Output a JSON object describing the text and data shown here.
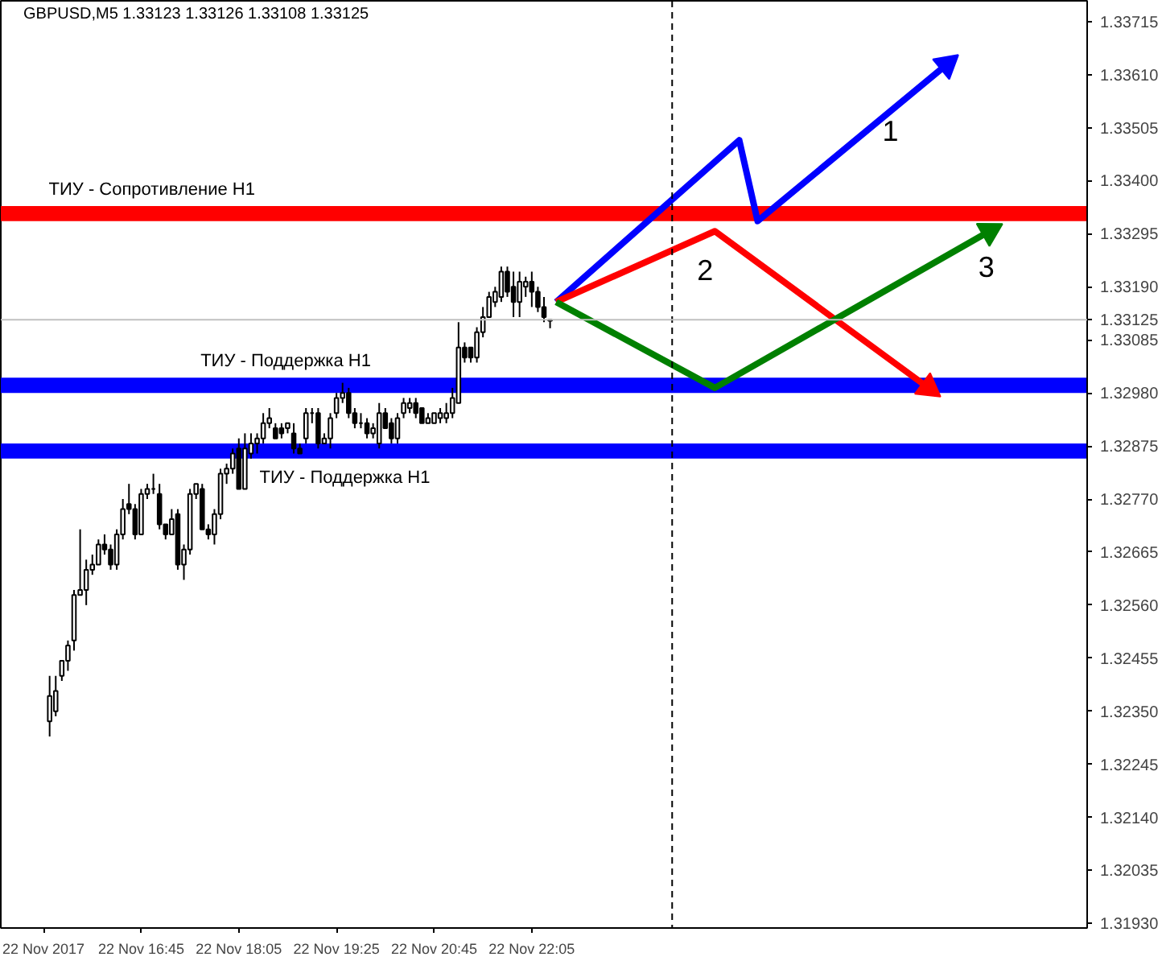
{
  "chart_data": {
    "type": "candlestick",
    "title": "GBPUSD,M5  1.33123 1.33126 1.33108 1.33125",
    "x": [
      "2017-11-22T15:30",
      "2017-11-22T15:35",
      "2017-11-22T15:40",
      "2017-11-22T15:45",
      "2017-11-22T15:50",
      "2017-11-22T15:55",
      "2017-11-22T16:00",
      "2017-11-22T16:05",
      "2017-11-22T16:10",
      "2017-11-22T16:15",
      "2017-11-22T16:20",
      "2017-11-22T16:25",
      "2017-11-22T16:30",
      "2017-11-22T16:35",
      "2017-11-22T16:40",
      "2017-11-22T16:45",
      "2017-11-22T16:50",
      "2017-11-22T16:55",
      "2017-11-22T17:00",
      "2017-11-22T17:05",
      "2017-11-22T17:10",
      "2017-11-22T17:15",
      "2017-11-22T17:20",
      "2017-11-22T17:25",
      "2017-11-22T17:30",
      "2017-11-22T17:35",
      "2017-11-22T17:40",
      "2017-11-22T17:45",
      "2017-11-22T17:50",
      "2017-11-22T17:55",
      "2017-11-22T18:00",
      "2017-11-22T18:05",
      "2017-11-22T18:10",
      "2017-11-22T18:15",
      "2017-11-22T18:20",
      "2017-11-22T18:25",
      "2017-11-22T18:30",
      "2017-11-22T18:35",
      "2017-11-22T18:40",
      "2017-11-22T18:45",
      "2017-11-22T18:50",
      "2017-11-22T18:55",
      "2017-11-22T19:00",
      "2017-11-22T19:05",
      "2017-11-22T19:10",
      "2017-11-22T19:15",
      "2017-11-22T19:20",
      "2017-11-22T19:25",
      "2017-11-22T19:30",
      "2017-11-22T19:35",
      "2017-11-22T19:40",
      "2017-11-22T19:45",
      "2017-11-22T19:50",
      "2017-11-22T19:55",
      "2017-11-22T20:00",
      "2017-11-22T20:05",
      "2017-11-22T20:10",
      "2017-11-22T20:15",
      "2017-11-22T20:20",
      "2017-11-22T20:25",
      "2017-11-22T20:30",
      "2017-11-22T20:35",
      "2017-11-22T20:40",
      "2017-11-22T20:45",
      "2017-11-22T20:50",
      "2017-11-22T20:55",
      "2017-11-22T21:00",
      "2017-11-22T21:05",
      "2017-11-22T21:10",
      "2017-11-22T21:15",
      "2017-11-22T21:20",
      "2017-11-22T21:25",
      "2017-11-22T21:30",
      "2017-11-22T21:35",
      "2017-11-22T21:40",
      "2017-11-22T21:45",
      "2017-11-22T21:50",
      "2017-11-22T21:55",
      "2017-11-22T22:00",
      "2017-11-22T22:05",
      "2017-11-22T22:10",
      "2017-11-22T22:15",
      "2017-11-22T22:20"
    ],
    "ohlc": [
      [
        1.3233,
        1.3242,
        1.323,
        1.3238
      ],
      [
        1.3235,
        1.3242,
        1.3234,
        1.3239
      ],
      [
        1.3242,
        1.3245,
        1.3241,
        1.3245
      ],
      [
        1.3245,
        1.3249,
        1.3243,
        1.3248
      ],
      [
        1.3249,
        1.3259,
        1.3247,
        1.3258
      ],
      [
        1.3258,
        1.3271,
        1.3258,
        1.3259
      ],
      [
        1.3259,
        1.3265,
        1.3256,
        1.3263
      ],
      [
        1.3263,
        1.3266,
        1.3262,
        1.3264
      ],
      [
        1.3264,
        1.3269,
        1.3264,
        1.3268
      ],
      [
        1.3268,
        1.327,
        1.3266,
        1.3267
      ],
      [
        1.3267,
        1.3268,
        1.3263,
        1.3264
      ],
      [
        1.3264,
        1.3271,
        1.3263,
        1.327
      ],
      [
        1.327,
        1.3277,
        1.3269,
        1.3275
      ],
      [
        1.3276,
        1.328,
        1.3274,
        1.3275
      ],
      [
        1.3275,
        1.3276,
        1.3269,
        1.327
      ],
      [
        1.327,
        1.3279,
        1.327,
        1.3278
      ],
      [
        1.3278,
        1.328,
        1.3277,
        1.3279
      ],
      [
        1.3279,
        1.3282,
        1.3278,
        1.3279
      ],
      [
        1.3278,
        1.328,
        1.3271,
        1.3272
      ],
      [
        1.3272,
        1.3272,
        1.3269,
        1.327
      ],
      [
        1.327,
        1.3275,
        1.327,
        1.3273
      ],
      [
        1.3274,
        1.3275,
        1.3263,
        1.3264
      ],
      [
        1.3264,
        1.3268,
        1.3261,
        1.3267
      ],
      [
        1.3267,
        1.3279,
        1.3266,
        1.3278
      ],
      [
        1.3278,
        1.328,
        1.3277,
        1.328
      ],
      [
        1.3279,
        1.328,
        1.3271,
        1.3271
      ],
      [
        1.3271,
        1.3272,
        1.3269,
        1.327
      ],
      [
        1.327,
        1.3275,
        1.3268,
        1.3274
      ],
      [
        1.3274,
        1.3283,
        1.3273,
        1.3282
      ],
      [
        1.3282,
        1.3284,
        1.328,
        1.3283
      ],
      [
        1.3283,
        1.3287,
        1.3282,
        1.3286
      ],
      [
        1.3287,
        1.3289,
        1.3279,
        1.3279
      ],
      [
        1.3279,
        1.329,
        1.3279,
        1.3287
      ],
      [
        1.3286,
        1.329,
        1.3285,
        1.3288
      ],
      [
        1.3288,
        1.329,
        1.3286,
        1.3289
      ],
      [
        1.3289,
        1.3294,
        1.3288,
        1.3292
      ],
      [
        1.3292,
        1.3295,
        1.3291,
        1.3293
      ],
      [
        1.3291,
        1.3292,
        1.3289,
        1.3289
      ],
      [
        1.3291,
        1.3292,
        1.3289,
        1.329
      ],
      [
        1.3291,
        1.3292,
        1.329,
        1.3292
      ],
      [
        1.329,
        1.3292,
        1.3286,
        1.3287
      ],
      [
        1.3287,
        1.3288,
        1.3286,
        1.3286
      ],
      [
        1.3289,
        1.3295,
        1.3288,
        1.3294
      ],
      [
        1.3294,
        1.3295,
        1.3292,
        1.3294
      ],
      [
        1.3294,
        1.3295,
        1.3287,
        1.3288
      ],
      [
        1.3288,
        1.329,
        1.3288,
        1.3289
      ],
      [
        1.3289,
        1.3294,
        1.3287,
        1.3293
      ],
      [
        1.3294,
        1.3298,
        1.3293,
        1.3297
      ],
      [
        1.3297,
        1.33,
        1.3296,
        1.3298
      ],
      [
        1.3298,
        1.3299,
        1.3293,
        1.3294
      ],
      [
        1.3294,
        1.3295,
        1.3291,
        1.3292
      ],
      [
        1.3292,
        1.3294,
        1.3291,
        1.3292
      ],
      [
        1.3292,
        1.3293,
        1.3289,
        1.329
      ],
      [
        1.329,
        1.3292,
        1.3289,
        1.3291
      ],
      [
        1.3288,
        1.3296,
        1.3287,
        1.3294
      ],
      [
        1.3294,
        1.3295,
        1.3291,
        1.3291
      ],
      [
        1.3292,
        1.3293,
        1.3288,
        1.3289
      ],
      [
        1.3289,
        1.3294,
        1.3288,
        1.3293
      ],
      [
        1.3294,
        1.3297,
        1.3293,
        1.3296
      ],
      [
        1.3295,
        1.3297,
        1.3294,
        1.3296
      ],
      [
        1.3296,
        1.3297,
        1.3293,
        1.3294
      ],
      [
        1.3295,
        1.3295,
        1.3292,
        1.3292
      ],
      [
        1.3292,
        1.3294,
        1.3292,
        1.3293
      ],
      [
        1.3292,
        1.3294,
        1.3292,
        1.3294
      ],
      [
        1.3293,
        1.3295,
        1.3292,
        1.3294
      ],
      [
        1.3293,
        1.3296,
        1.3292,
        1.3294
      ],
      [
        1.3294,
        1.3299,
        1.3293,
        1.3297
      ],
      [
        1.3296,
        1.3312,
        1.3296,
        1.3307
      ],
      [
        1.3307,
        1.3308,
        1.3304,
        1.3305
      ],
      [
        1.3307,
        1.3307,
        1.3304,
        1.3305
      ],
      [
        1.3305,
        1.3311,
        1.3304,
        1.331
      ],
      [
        1.331,
        1.3315,
        1.3309,
        1.3313
      ],
      [
        1.3313,
        1.3318,
        1.3313,
        1.3317
      ],
      [
        1.3316,
        1.3319,
        1.3315,
        1.3318
      ],
      [
        1.3317,
        1.3323,
        1.3316,
        1.3322
      ],
      [
        1.3322,
        1.3323,
        1.3317,
        1.3318
      ],
      [
        1.3319,
        1.3322,
        1.3313,
        1.3316
      ],
      [
        1.3316,
        1.3322,
        1.3313,
        1.332
      ],
      [
        1.3319,
        1.3321,
        1.3317,
        1.332
      ],
      [
        1.332,
        1.3322,
        1.3315,
        1.3318
      ],
      [
        1.3318,
        1.3319,
        1.3314,
        1.3315
      ],
      [
        1.3315,
        1.3317,
        1.3312,
        1.3313
      ],
      [
        1.33123,
        1.33126,
        1.33108,
        1.33125
      ]
    ],
    "series": [
      {
        "type": "line",
        "name": "1",
        "color": "#0000ff",
        "x": [
          "2017-11-22T22:25",
          "2017-11-23T00:55",
          "2017-11-23T01:10",
          "2017-11-23T03:45"
        ],
        "values": [
          1.3316,
          1.3348,
          1.3332,
          1.3363
        ]
      },
      {
        "type": "line",
        "name": "2",
        "color": "#ff0000",
        "x": [
          "2017-11-22T22:25",
          "2017-11-23T00:35",
          "2017-11-23T03:30"
        ],
        "values": [
          1.3316,
          1.333,
          1.3299
        ]
      },
      {
        "type": "line",
        "name": "3",
        "color": "#008000",
        "x": [
          "2017-11-22T22:25",
          "2017-11-23T00:35",
          "2017-11-23T04:20"
        ],
        "values": [
          1.3316,
          1.3299,
          1.333
        ]
      }
    ],
    "bands": [
      {
        "axis": "y",
        "from": 1.3332,
        "to": 1.3335,
        "label": "ТИУ - Сопротивление H1",
        "color": "#ff0000"
      },
      {
        "axis": "y",
        "from": 1.3298,
        "to": 1.3301,
        "label": "ТИУ - Поддержка H1",
        "color": "#0000ff"
      },
      {
        "axis": "y",
        "from": 1.3285,
        "to": 1.3288,
        "label": "ТИУ - Поддержка H1",
        "color": "#0000ff"
      }
    ],
    "ref_lines": [
      {
        "axis": "x",
        "value": "2017-11-23T00:00",
        "color": "#000000",
        "line_style": "dashed"
      },
      {
        "axis": "y",
        "value": 1.33125,
        "label": "1.33125",
        "color": "#c0c0c0"
      }
    ],
    "xlim": [
      "2017-11-22T14:50",
      "2017-11-23T05:40"
    ],
    "xticks": [
      {
        "value": "2017-11-22T15:25",
        "label": "22 Nov 2017"
      },
      {
        "value": "2017-11-22T16:45",
        "label": "22 Nov 16:45"
      },
      {
        "value": "2017-11-22T18:05",
        "label": "22 Nov 18:05"
      },
      {
        "value": "2017-11-22T19:25",
        "label": "22 Nov 19:25"
      },
      {
        "value": "2017-11-22T20:45",
        "label": "22 Nov 20:45"
      },
      {
        "value": "2017-11-22T22:05",
        "label": "22 Nov 22:05"
      }
    ],
    "ylim": [
      1.31921,
      1.33756
    ],
    "yticks": [
      {
        "value": 1.3193,
        "label": "1.31930"
      },
      {
        "value": 1.32035,
        "label": "1.32035"
      },
      {
        "value": 1.3214,
        "label": "1.32140"
      },
      {
        "value": 1.32245,
        "label": "1.32245"
      },
      {
        "value": 1.3235,
        "label": "1.32350"
      },
      {
        "value": 1.32455,
        "label": "1.32455"
      },
      {
        "value": 1.3256,
        "label": "1.32560"
      },
      {
        "value": 1.32665,
        "label": "1.32665"
      },
      {
        "value": 1.3277,
        "label": "1.32770"
      },
      {
        "value": 1.32875,
        "label": "1.32875"
      },
      {
        "value": 1.3298,
        "label": "1.32980"
      },
      {
        "value": 1.33085,
        "label": "1.33085"
      },
      {
        "value": 1.3319,
        "label": "1.33190"
      },
      {
        "value": 1.33295,
        "label": "1.33295"
      },
      {
        "value": 1.334,
        "label": "1.33400"
      },
      {
        "value": 1.33505,
        "label": "1.33505"
      },
      {
        "value": 1.3361,
        "label": "1.33610"
      },
      {
        "value": 1.33715,
        "label": "1.33715"
      }
    ],
    "grid": false
  }
}
